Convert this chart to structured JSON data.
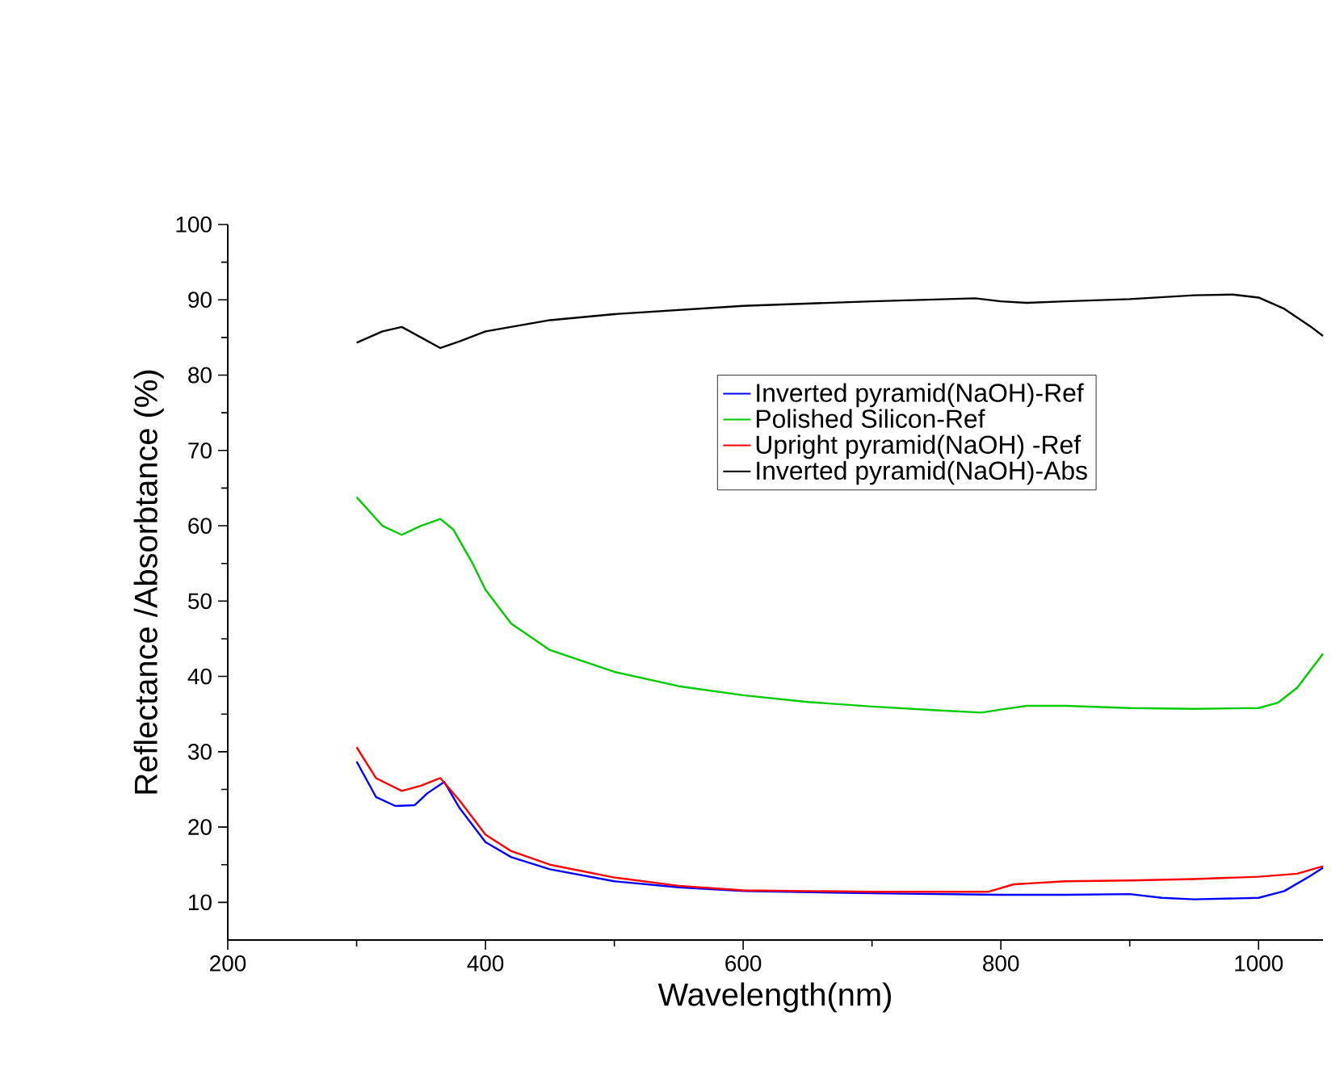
{
  "chart_data": {
    "type": "line",
    "xlabel": "Wavelength(nm)",
    "ylabel": "Reflectance /Absorbtance (%)",
    "xlim": [
      200,
      1050
    ],
    "xticks": [
      200,
      400,
      600,
      800,
      1000
    ],
    "ylim": [
      5,
      100
    ],
    "yticks": [
      10,
      20,
      30,
      40,
      50,
      60,
      70,
      80,
      90,
      100
    ],
    "grid": false,
    "legend": "top",
    "marker": "none",
    "line_style": "solid",
    "series": [
      {
        "name": "Inverted pyramid(NaOH)-Ref",
        "color": "#0000ff",
        "x": [
          300,
          315,
          330,
          345,
          355,
          368,
          380,
          400,
          420,
          450,
          500,
          550,
          600,
          700,
          800,
          850,
          900,
          925,
          950,
          1000,
          1020,
          1040,
          1050
        ],
        "values": [
          28.7,
          24,
          22.8,
          22.9,
          24.5,
          26,
          22.5,
          18,
          16,
          14.4,
          12.8,
          12,
          11.5,
          11.2,
          11,
          11,
          11.1,
          10.6,
          10.4,
          10.6,
          11.5,
          13.5,
          14.6
        ]
      },
      {
        "name": "Polished Silicon-Ref",
        "color": "#00cc00",
        "x": [
          300,
          320,
          335,
          350,
          365,
          375,
          390,
          400,
          420,
          450,
          500,
          550,
          600,
          650,
          700,
          750,
          785,
          800,
          820,
          850,
          900,
          950,
          1000,
          1015,
          1030,
          1050
        ],
        "values": [
          63.8,
          60,
          58.8,
          60,
          60.9,
          59.5,
          55,
          51.5,
          47,
          43.5,
          40.6,
          38.7,
          37.5,
          36.6,
          36,
          35.5,
          35.2,
          35.6,
          36.1,
          36.1,
          35.8,
          35.7,
          35.8,
          36.5,
          38.5,
          43
        ]
      },
      {
        "name": "Upright pyramid(NaOH) -Ref",
        "color": "#ff0000",
        "x": [
          300,
          315,
          335,
          350,
          365,
          380,
          400,
          420,
          450,
          500,
          550,
          600,
          700,
          790,
          810,
          850,
          900,
          950,
          1000,
          1030,
          1050
        ],
        "values": [
          30.6,
          26.5,
          24.8,
          25.5,
          26.5,
          23.5,
          19,
          16.8,
          15,
          13.3,
          12.2,
          11.6,
          11.4,
          11.4,
          12.4,
          12.8,
          12.9,
          13.1,
          13.4,
          13.8,
          14.8
        ]
      },
      {
        "name": "Inverted pyramid(NaOH)-Abs",
        "color": "#000000",
        "x": [
          300,
          320,
          335,
          350,
          365,
          380,
          400,
          450,
          500,
          600,
          700,
          780,
          800,
          820,
          850,
          900,
          950,
          980,
          1000,
          1020,
          1040,
          1050
        ],
        "values": [
          84.3,
          85.8,
          86.4,
          85,
          83.6,
          84.5,
          85.8,
          87.3,
          88.1,
          89.2,
          89.8,
          90.2,
          89.8,
          89.6,
          89.8,
          90.1,
          90.6,
          90.7,
          90.3,
          88.8,
          86.5,
          85.2
        ]
      }
    ]
  }
}
